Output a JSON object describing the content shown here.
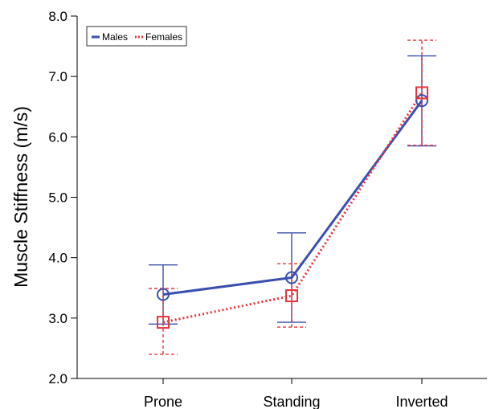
{
  "chart_data": {
    "type": "line",
    "categories": [
      "Prone",
      "Standing",
      "Inverted"
    ],
    "ylabel": "Muscle Stiffness (m/s)",
    "xlabel": "",
    "ylim": [
      2.0,
      8.0
    ],
    "yticks": [
      "2.0",
      "3.0",
      "4.0",
      "5.0",
      "6.0",
      "7.0",
      "8.0"
    ],
    "grid": false,
    "legend_position": "top-left",
    "series": [
      {
        "name": "Males",
        "color": "#3a4fae",
        "line_style": "solid",
        "marker": "circle",
        "values": [
          3.39,
          3.67,
          6.6
        ],
        "error_low": [
          2.9,
          2.93,
          5.85
        ],
        "error_high": [
          3.88,
          4.41,
          7.34
        ]
      },
      {
        "name": "Females",
        "color": "#e8343a",
        "line_style": "dotted",
        "marker": "square",
        "values": [
          2.93,
          3.37,
          6.73
        ],
        "error_low": [
          2.4,
          2.85,
          5.86
        ],
        "error_high": [
          3.49,
          3.9,
          7.6
        ]
      }
    ]
  }
}
